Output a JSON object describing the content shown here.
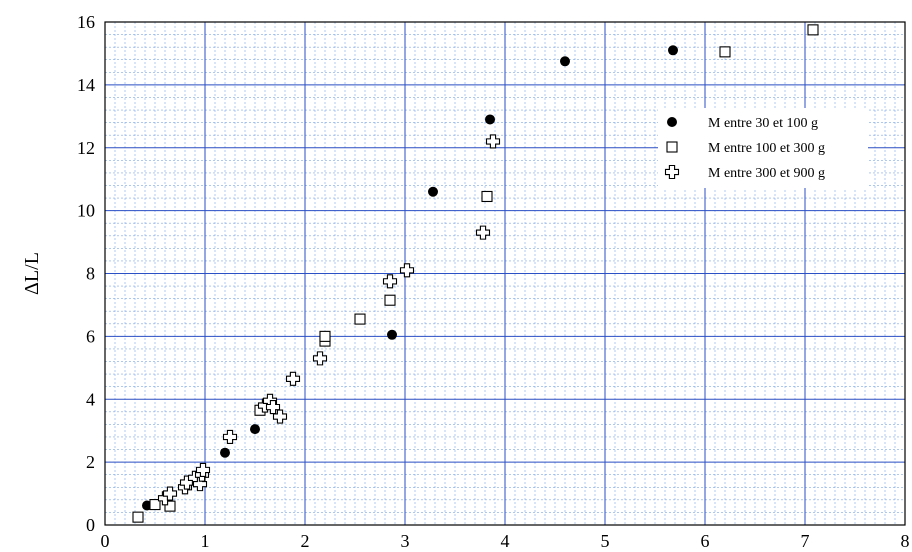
{
  "chart_data": {
    "type": "scatter",
    "title": "",
    "xlabel": "",
    "ylabel": "ΔL/L",
    "xlim": [
      0,
      8
    ],
    "ylim": [
      0,
      16
    ],
    "x_ticks": [
      0,
      1,
      2,
      3,
      4,
      5,
      6,
      7,
      8
    ],
    "y_ticks": [
      0,
      2,
      4,
      6,
      8,
      10,
      12,
      14,
      16
    ],
    "grid": true,
    "legend_position": "top-right",
    "series": [
      {
        "name": "M entre 30 et 100 g",
        "marker": "filled-circle",
        "points": [
          [
            0.42,
            0.62
          ],
          [
            1.2,
            2.3
          ],
          [
            1.5,
            3.05
          ],
          [
            2.87,
            6.05
          ],
          [
            3.28,
            10.6
          ],
          [
            3.85,
            12.9
          ],
          [
            4.6,
            14.75
          ],
          [
            5.68,
            15.1
          ]
        ]
      },
      {
        "name": "M entre 100 et 300 g",
        "marker": "open-square",
        "points": [
          [
            0.33,
            0.25
          ],
          [
            0.5,
            0.65
          ],
          [
            0.65,
            0.6
          ],
          [
            0.95,
            1.5
          ],
          [
            1.55,
            3.65
          ],
          [
            2.2,
            5.85
          ],
          [
            2.2,
            6.0
          ],
          [
            2.55,
            6.55
          ],
          [
            2.85,
            7.15
          ],
          [
            3.82,
            10.45
          ],
          [
            6.2,
            15.05
          ],
          [
            7.08,
            15.75
          ]
        ]
      },
      {
        "name": "M entre 300 et 900 g",
        "marker": "open-cross",
        "points": [
          [
            0.6,
            0.85
          ],
          [
            0.65,
            1.0
          ],
          [
            0.8,
            1.2
          ],
          [
            0.82,
            1.35
          ],
          [
            0.9,
            1.5
          ],
          [
            0.95,
            1.3
          ],
          [
            0.97,
            1.6
          ],
          [
            0.98,
            1.75
          ],
          [
            1.25,
            2.8
          ],
          [
            1.6,
            3.8
          ],
          [
            1.65,
            3.95
          ],
          [
            1.68,
            3.75
          ],
          [
            1.75,
            3.45
          ],
          [
            1.88,
            4.65
          ],
          [
            2.15,
            5.3
          ],
          [
            2.85,
            7.75
          ],
          [
            3.02,
            8.1
          ],
          [
            3.78,
            9.3
          ],
          [
            3.88,
            12.2
          ]
        ]
      }
    ]
  }
}
